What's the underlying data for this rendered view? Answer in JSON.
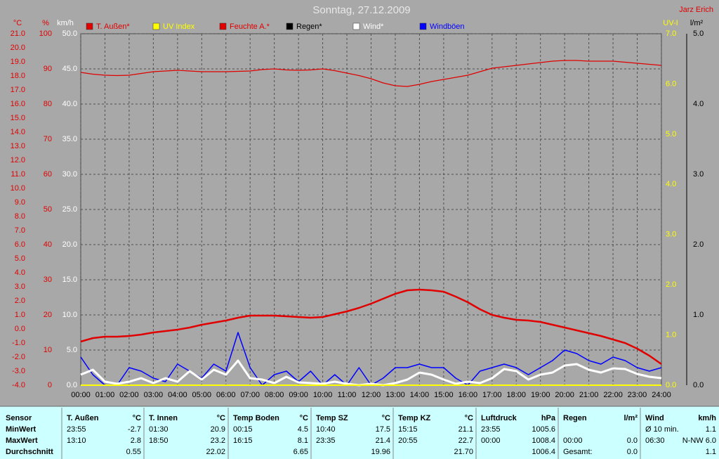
{
  "chart_data": {
    "type": "line",
    "title": "Sonntag, 27.12.2009",
    "author": "Jarz Erich",
    "ylabel": "°C",
    "y2label": "%",
    "y3label": "km/h",
    "y4label": "UV-I",
    "y5label": "l/m²",
    "grid": true,
    "xlim": [
      0,
      24
    ],
    "xticks": [
      {
        "value": 0,
        "label": "00:00"
      },
      {
        "value": 1,
        "label": "01:00"
      },
      {
        "value": 2,
        "label": "02:00"
      },
      {
        "value": 3,
        "label": "03:00"
      },
      {
        "value": 4,
        "label": "04:00"
      },
      {
        "value": 5,
        "label": "05:00"
      },
      {
        "value": 6,
        "label": "06:00"
      },
      {
        "value": 7,
        "label": "07:00"
      },
      {
        "value": 8,
        "label": "08:00"
      },
      {
        "value": 9,
        "label": "09:00"
      },
      {
        "value": 10,
        "label": "10:00"
      },
      {
        "value": 11,
        "label": "11:00"
      },
      {
        "value": 12,
        "label": "12:00"
      },
      {
        "value": 13,
        "label": "13:00"
      },
      {
        "value": 14,
        "label": "14:00"
      },
      {
        "value": 15,
        "label": "15:00"
      },
      {
        "value": 16,
        "label": "16:00"
      },
      {
        "value": 17,
        "label": "17:00"
      },
      {
        "value": 18,
        "label": "18:00"
      },
      {
        "value": 19,
        "label": "19:00"
      },
      {
        "value": 20,
        "label": "20:00"
      },
      {
        "value": 21,
        "label": "21:00"
      },
      {
        "value": 22,
        "label": "22:00"
      },
      {
        "value": 23,
        "label": "23:00"
      },
      {
        "value": 24,
        "label": "24:00"
      }
    ],
    "ylim": [
      -4,
      21
    ],
    "yticks": [
      {
        "value": -4,
        "label": "-4.0"
      },
      {
        "value": -3,
        "label": "-3.0"
      },
      {
        "value": -2,
        "label": "-2.0"
      },
      {
        "value": -1,
        "label": "-1.0"
      },
      {
        "value": 0,
        "label": "0.0"
      },
      {
        "value": 1,
        "label": "1.0"
      },
      {
        "value": 2,
        "label": "2.0"
      },
      {
        "value": 3,
        "label": "3.0"
      },
      {
        "value": 4,
        "label": "4.0"
      },
      {
        "value": 5,
        "label": "5.0"
      },
      {
        "value": 6,
        "label": "6.0"
      },
      {
        "value": 7,
        "label": "7.0"
      },
      {
        "value": 8,
        "label": "8.0"
      },
      {
        "value": 9,
        "label": "9.0"
      },
      {
        "value": 10,
        "label": "10.0"
      },
      {
        "value": 11,
        "label": "11.0"
      },
      {
        "value": 12,
        "label": "12.0"
      },
      {
        "value": 13,
        "label": "13.0"
      },
      {
        "value": 14,
        "label": "14.0"
      },
      {
        "value": 15,
        "label": "15.0"
      },
      {
        "value": 16,
        "label": "16.0"
      },
      {
        "value": 17,
        "label": "17.0"
      },
      {
        "value": 18,
        "label": "18.0"
      },
      {
        "value": 19,
        "label": "19.0"
      },
      {
        "value": 20,
        "label": "20.0"
      },
      {
        "value": 21,
        "label": "21.0"
      }
    ],
    "y2lim": [
      0,
      100
    ],
    "y2ticks": [
      0,
      10,
      20,
      30,
      40,
      50,
      60,
      70,
      80,
      90,
      100
    ],
    "y3lim": [
      0,
      50
    ],
    "y3ticks": [
      {
        "value": 0,
        "label": "0.0"
      },
      {
        "value": 5,
        "label": "5.0"
      },
      {
        "value": 10,
        "label": "10.0"
      },
      {
        "value": 15,
        "label": "15.0"
      },
      {
        "value": 20,
        "label": "20.0"
      },
      {
        "value": 25,
        "label": "25.0"
      },
      {
        "value": 30,
        "label": "30.0"
      },
      {
        "value": 35,
        "label": "35.0"
      },
      {
        "value": 40,
        "label": "40.0"
      },
      {
        "value": 45,
        "label": "45.0"
      },
      {
        "value": 50,
        "label": "50.0"
      }
    ],
    "y4lim": [
      0,
      7
    ],
    "y4ticks": [
      {
        "value": 0,
        "label": "0.0"
      },
      {
        "value": 1,
        "label": "1.0"
      },
      {
        "value": 2,
        "label": "2.0"
      },
      {
        "value": 3,
        "label": "3.0"
      },
      {
        "value": 4,
        "label": "4.0"
      },
      {
        "value": 5,
        "label": "5.0"
      },
      {
        "value": 6,
        "label": "6.0"
      },
      {
        "value": 7,
        "label": "7.0"
      }
    ],
    "y5lim": [
      0,
      5
    ],
    "y5ticks": [
      {
        "value": 0,
        "label": "0.0"
      },
      {
        "value": 1,
        "label": "1.0"
      },
      {
        "value": 2,
        "label": "2.0"
      },
      {
        "value": 3,
        "label": "3.0"
      },
      {
        "value": 4,
        "label": "4.0"
      },
      {
        "value": 5,
        "label": "5.0"
      }
    ],
    "x": [
      0,
      0.5,
      1,
      1.5,
      2,
      2.5,
      3,
      3.5,
      4,
      4.5,
      5,
      5.5,
      6,
      6.5,
      7,
      7.5,
      8,
      8.5,
      9,
      9.5,
      10,
      10.5,
      11,
      11.5,
      12,
      12.5,
      13,
      13.5,
      14,
      14.5,
      15,
      15.5,
      16,
      16.5,
      17,
      17.5,
      18,
      18.5,
      19,
      19.5,
      20,
      20.5,
      21,
      21.5,
      22,
      22.5,
      23,
      23.5,
      24
    ],
    "series": [
      {
        "name": "T. Außen*",
        "color": "#e00000",
        "axis": "y",
        "values": [
          -0.9,
          -0.65,
          -0.55,
          -0.55,
          -0.5,
          -0.4,
          -0.25,
          -0.15,
          -0.05,
          0.1,
          0.3,
          0.45,
          0.6,
          0.8,
          0.95,
          0.95,
          0.95,
          0.9,
          0.85,
          0.8,
          0.85,
          1.05,
          1.25,
          1.5,
          1.8,
          2.15,
          2.5,
          2.75,
          2.8,
          2.75,
          2.65,
          2.3,
          1.9,
          1.4,
          1.0,
          0.8,
          0.65,
          0.6,
          0.5,
          0.3,
          0.1,
          -0.1,
          -0.3,
          -0.5,
          -0.75,
          -1.0,
          -1.4,
          -1.9,
          -2.5
        ]
      },
      {
        "name": "UV Index",
        "color": "#ffff00",
        "axis": "y4",
        "values": [
          0,
          0,
          0,
          0,
          0,
          0,
          0,
          0,
          0,
          0,
          0,
          0,
          0,
          0,
          0,
          0,
          0,
          0,
          0,
          0,
          0,
          0,
          0,
          0,
          0,
          0,
          0,
          0,
          0,
          0,
          0,
          0,
          0,
          0,
          0,
          0,
          0,
          0,
          0,
          0,
          0,
          0,
          0,
          0,
          0,
          0,
          0,
          0,
          0
        ]
      },
      {
        "name": "Feuchte A.*",
        "color": "#e00000",
        "axis": "y2",
        "values": [
          89,
          88.5,
          88.2,
          88.1,
          88.2,
          88.7,
          89.2,
          89.4,
          89.6,
          89.4,
          89.2,
          89.2,
          89.2,
          89.3,
          89.4,
          89.8,
          90,
          89.7,
          89.6,
          89.7,
          90,
          89.5,
          88.8,
          88.1,
          87.2,
          86,
          85.2,
          85,
          85.6,
          86.4,
          87,
          87.6,
          88.2,
          89.2,
          90.2,
          90.6,
          91,
          91.4,
          91.8,
          92.2,
          92.4,
          92.4,
          92.2,
          92.2,
          92.2,
          91.9,
          91.6,
          91.3,
          91
        ]
      },
      {
        "name": "Regen*",
        "color": "#000000",
        "axis": "y5",
        "values": [
          0,
          0,
          0,
          0,
          0,
          0,
          0,
          0,
          0,
          0,
          0,
          0,
          0,
          0,
          0,
          0,
          0,
          0,
          0,
          0,
          0,
          0,
          0,
          0,
          0,
          0,
          0,
          0,
          0,
          0,
          0,
          0,
          0,
          0,
          0,
          0,
          0,
          0,
          0,
          0,
          0,
          0,
          0,
          0,
          0,
          0,
          0,
          0,
          0
        ]
      },
      {
        "name": "Wind*",
        "color": "#ffffff",
        "axis": "y3",
        "values": [
          1.5,
          2.2,
          0.5,
          0.2,
          0.5,
          1,
          0.3,
          1,
          0.5,
          2,
          0.8,
          2.2,
          1.5,
          3.5,
          1,
          0.8,
          0.3,
          1.2,
          0.4,
          0.3,
          0.2,
          0.5,
          0.2,
          0,
          0.2,
          0,
          0.3,
          0.8,
          1.8,
          1.5,
          0.8,
          0.2,
          0.5,
          0.3,
          1,
          2.3,
          2,
          0.8,
          1.5,
          1.8,
          2.8,
          3,
          2.2,
          1.8,
          2.4,
          2.3,
          1.6,
          1.2,
          1
        ]
      },
      {
        "name": "Windböen",
        "color": "#0000ff",
        "axis": "y3",
        "values": [
          4,
          1.5,
          0,
          0,
          2.5,
          2,
          1,
          0.5,
          3,
          2,
          1,
          3,
          2,
          7.5,
          2.5,
          0,
          1.5,
          2,
          0.5,
          2,
          0,
          1.5,
          0,
          2.5,
          0,
          1,
          2.5,
          2.5,
          3,
          2.5,
          2.5,
          1,
          0,
          2,
          2.5,
          3,
          2.5,
          1.5,
          2.5,
          3.5,
          5,
          4.5,
          3.5,
          3,
          4,
          3.5,
          2.5,
          2,
          2.5
        ]
      }
    ]
  },
  "table": {
    "header": "Sensor",
    "row_labels": [
      "MinWert",
      "MaxWert",
      "Durchschnitt"
    ],
    "columns": [
      {
        "name": "T. Außen",
        "unit": "°C",
        "rows": [
          {
            "time": "23:55",
            "value": "-2.7"
          },
          {
            "time": "13:10",
            "value": "2.8"
          },
          {
            "value": "0.55"
          }
        ]
      },
      {
        "name": "T. Innen",
        "unit": "°C",
        "rows": [
          {
            "time": "01:30",
            "value": "20.9"
          },
          {
            "time": "18:50",
            "value": "23.2"
          },
          {
            "value": "22.02"
          }
        ]
      },
      {
        "name": "Temp Boden",
        "unit": "°C",
        "rows": [
          {
            "time": "00:15",
            "value": "4.5"
          },
          {
            "time": "16:15",
            "value": "8.1"
          },
          {
            "value": "6.65"
          }
        ]
      },
      {
        "name": "Temp SZ",
        "unit": "°C",
        "rows": [
          {
            "time": "10:40",
            "value": "17.5"
          },
          {
            "time": "23:35",
            "value": "21.4"
          },
          {
            "value": "19.96"
          }
        ]
      },
      {
        "name": "Temp KZ",
        "unit": "°C",
        "rows": [
          {
            "time": "15:15",
            "value": "21.1"
          },
          {
            "time": "20:55",
            "value": "22.7"
          },
          {
            "value": "21.70"
          }
        ]
      },
      {
        "name": "Luftdruck",
        "unit": "hPa",
        "rows": [
          {
            "time": "23:55",
            "value": "1005.6"
          },
          {
            "time": "00:00",
            "value": "1008.4"
          },
          {
            "value": "1006.4"
          }
        ]
      },
      {
        "name": "Regen",
        "unit": "l/m²",
        "rows": [
          null,
          {
            "time": "00:00",
            "value": "0.0"
          },
          {
            "time": "Gesamt:",
            "value": "0.0"
          }
        ]
      },
      {
        "name": "Wind",
        "unit": "km/h",
        "rows": [
          {
            "time": "Ø 10 min.",
            "value": "1.1"
          },
          {
            "time": "06:30",
            "value": "N-NW 6.0"
          },
          {
            "value": "1.1"
          }
        ]
      }
    ]
  }
}
